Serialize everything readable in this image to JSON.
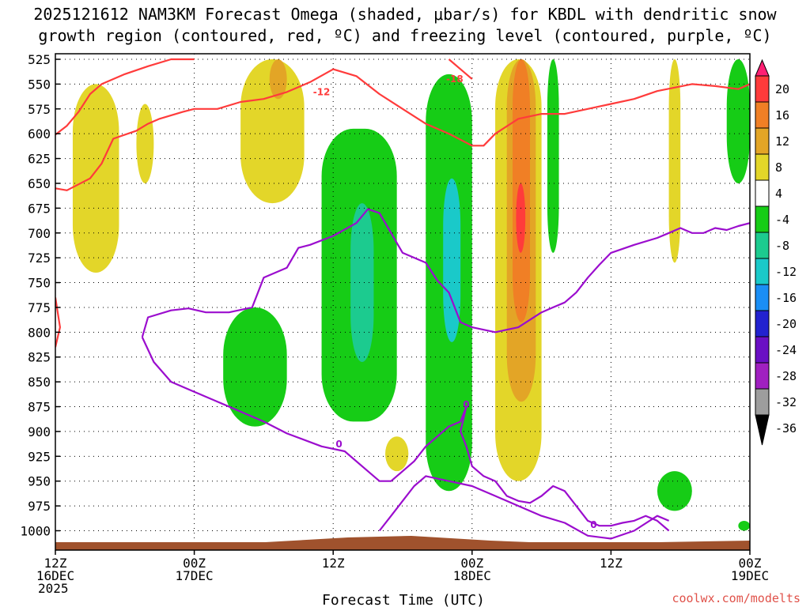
{
  "chart_data": {
    "type": "time-height contour",
    "title_line1": "2025121612 NAM3KM Forecast Omega (shaded, μbar/s) for KBDL with dendritic snow",
    "title_line2": "growth region (contoured, red, ºC) and freezing level (contoured, purple, ºC)",
    "xlabel": "Forecast Time (UTC)",
    "credit": "coolwx.com/modelts",
    "x_hours_range": [
      0,
      60
    ],
    "x_ticks": [
      {
        "hour": 0,
        "line1": "12Z",
        "line2": "16DEC",
        "line3": "2025"
      },
      {
        "hour": 12,
        "line1": "00Z",
        "line2": "17DEC",
        "line3": ""
      },
      {
        "hour": 24,
        "line1": "12Z",
        "line2": "",
        "line3": ""
      },
      {
        "hour": 36,
        "line1": "00Z",
        "line2": "18DEC",
        "line3": ""
      },
      {
        "hour": 48,
        "line1": "12Z",
        "line2": "",
        "line3": ""
      },
      {
        "hour": 60,
        "line1": "00Z",
        "line2": "19DEC",
        "line3": ""
      }
    ],
    "y_pressure_levels_hpa": [
      525,
      550,
      575,
      600,
      625,
      650,
      675,
      700,
      725,
      750,
      775,
      800,
      825,
      850,
      875,
      900,
      925,
      950,
      975,
      1000
    ],
    "colorbar": {
      "labels": [
        "20",
        "16",
        "12",
        "8",
        "4",
        "-4",
        "-8",
        "-12",
        "-16",
        "-20",
        "-24",
        "-28",
        "-32",
        "-36"
      ],
      "colors": [
        "#ff1f73",
        "#ff3b3b",
        "#f07f25",
        "#e3a526",
        "#e3d629",
        "#ffffff",
        "#16cc16",
        "#1ccb8f",
        "#1ac9c9",
        "#1a8ef5",
        "#2222d0",
        "#6a0fc4",
        "#a020c0",
        "#9d9d9d",
        "#000000"
      ]
    },
    "omega_regions_ubar_s": [
      {
        "category": "4 to 8",
        "hours": [
          1.5,
          5.5
        ],
        "pressure_hpa": [
          550,
          740
        ]
      },
      {
        "category": "4 to 8",
        "hours": [
          7,
          8.5
        ],
        "pressure_hpa": [
          570,
          650
        ]
      },
      {
        "category": "4 to 8",
        "hours": [
          16,
          21.5
        ],
        "pressure_hpa": [
          525,
          670
        ]
      },
      {
        "category": "8 to 12",
        "hours": [
          18.5,
          20
        ],
        "pressure_hpa": [
          525,
          565
        ]
      },
      {
        "category": "-4 to -8",
        "hours": [
          14.5,
          20
        ],
        "pressure_hpa": [
          775,
          895
        ]
      },
      {
        "category": "-4 to -8",
        "hours": [
          23,
          29.5
        ],
        "pressure_hpa": [
          595,
          890
        ]
      },
      {
        "category": "-8 to -12",
        "hours": [
          25.5,
          27.5
        ],
        "pressure_hpa": [
          670,
          830
        ]
      },
      {
        "category": "-4 to -8",
        "hours": [
          32,
          36
        ],
        "pressure_hpa": [
          540,
          960
        ]
      },
      {
        "category": "-12 to -16",
        "hours": [
          33.5,
          35
        ],
        "pressure_hpa": [
          645,
          810
        ]
      },
      {
        "category": "4 to 8",
        "hours": [
          38,
          42
        ],
        "pressure_hpa": [
          525,
          950
        ]
      },
      {
        "category": "8 to 12",
        "hours": [
          39,
          41.5
        ],
        "pressure_hpa": [
          525,
          870
        ]
      },
      {
        "category": "12 to 16",
        "hours": [
          39.5,
          41
        ],
        "pressure_hpa": [
          525,
          790
        ]
      },
      {
        "category": "16 to 20",
        "hours": [
          39.8,
          40.6
        ],
        "pressure_hpa": [
          650,
          720
        ]
      },
      {
        "category": "4 to 8",
        "hours": [
          28.5,
          30.5
        ],
        "pressure_hpa": [
          905,
          940
        ]
      },
      {
        "category": "-4 to -8",
        "hours": [
          42.5,
          43.5
        ],
        "pressure_hpa": [
          525,
          720
        ]
      },
      {
        "category": "4 to 8",
        "hours": [
          53,
          54
        ],
        "pressure_hpa": [
          525,
          730
        ]
      },
      {
        "category": "-4 to -8",
        "hours": [
          58,
          60
        ],
        "pressure_hpa": [
          525,
          650
        ]
      },
      {
        "category": "-4 to -8",
        "hours": [
          52,
          55
        ],
        "pressure_hpa": [
          940,
          980
        ]
      },
      {
        "category": "-4 to -8",
        "hours": [
          59,
          60
        ],
        "pressure_hpa": [
          990,
          1000
        ]
      }
    ],
    "contours": [
      {
        "name": "-12C isotherm (dendritic growth region)",
        "color": "#ff3b3b",
        "label": "-12",
        "points": [
          [
            0,
            601
          ],
          [
            1,
            592
          ],
          [
            2,
            578
          ],
          [
            3,
            560
          ],
          [
            4,
            550
          ],
          [
            6,
            540
          ],
          [
            8,
            532
          ],
          [
            10,
            525
          ],
          [
            12,
            525
          ]
        ]
      },
      {
        "name": "-12C isotherm lower branch",
        "color": "#ff3b3b",
        "label": "-12",
        "points": [
          [
            0,
            655
          ],
          [
            1,
            657
          ],
          [
            3,
            645
          ],
          [
            4,
            630
          ],
          [
            5,
            605
          ],
          [
            7,
            597
          ],
          [
            8,
            590
          ],
          [
            9,
            585
          ],
          [
            11,
            578
          ],
          [
            12,
            575
          ],
          [
            14,
            575
          ],
          [
            16,
            568
          ],
          [
            18,
            565
          ],
          [
            20,
            558
          ],
          [
            22,
            548
          ],
          [
            24,
            535
          ],
          [
            26,
            542
          ],
          [
            28,
            560
          ],
          [
            30,
            575
          ],
          [
            32,
            590
          ],
          [
            34,
            600
          ],
          [
            36,
            612
          ],
          [
            37,
            612
          ],
          [
            38,
            600
          ],
          [
            40,
            585
          ],
          [
            42,
            580
          ],
          [
            44,
            580
          ],
          [
            46,
            575
          ],
          [
            48,
            570
          ],
          [
            50,
            565
          ],
          [
            52,
            557
          ],
          [
            55,
            550
          ],
          [
            57,
            552
          ],
          [
            59,
            555
          ],
          [
            60,
            550
          ]
        ]
      },
      {
        "name": "-18C isotherm",
        "color": "#ff3b3b",
        "label": "-18",
        "points": [
          [
            34,
            525
          ],
          [
            35,
            535
          ],
          [
            36,
            545
          ]
        ]
      },
      {
        "name": "-12C edge",
        "color": "#ff3b3b",
        "label": "",
        "points": [
          [
            0,
            765
          ],
          [
            0.4,
            795
          ],
          [
            0,
            815
          ]
        ]
      },
      {
        "name": "0C freezing level",
        "color": "#9b0dce",
        "label": "0",
        "points": [
          [
            7.5,
            805
          ],
          [
            8,
            785
          ],
          [
            10,
            778
          ],
          [
            11.5,
            776
          ],
          [
            13,
            780
          ],
          [
            15,
            780
          ],
          [
            17,
            775
          ],
          [
            17.5,
            760
          ],
          [
            18,
            745
          ],
          [
            20,
            735
          ],
          [
            21,
            715
          ],
          [
            22,
            712
          ],
          [
            24,
            703
          ],
          [
            26,
            690
          ],
          [
            27,
            676
          ],
          [
            28,
            680
          ],
          [
            29,
            700
          ],
          [
            30,
            720
          ],
          [
            32,
            730
          ],
          [
            33,
            748
          ],
          [
            34,
            760
          ],
          [
            35,
            790
          ],
          [
            36,
            795
          ],
          [
            38,
            800
          ],
          [
            40,
            795
          ],
          [
            42,
            780
          ],
          [
            43,
            775
          ],
          [
            44,
            770
          ],
          [
            45,
            760
          ],
          [
            46,
            745
          ],
          [
            47,
            732
          ],
          [
            48,
            720
          ],
          [
            50,
            712
          ],
          [
            52,
            705
          ],
          [
            53,
            700
          ],
          [
            54,
            695
          ],
          [
            55,
            700
          ],
          [
            56,
            700
          ],
          [
            57,
            695
          ],
          [
            58,
            697
          ],
          [
            59,
            693
          ],
          [
            60,
            690
          ]
        ]
      },
      {
        "name": "0C freezing level lower branch",
        "color": "#9b0dce",
        "label": "0",
        "points": [
          [
            7.5,
            805
          ],
          [
            8.5,
            830
          ],
          [
            10,
            850
          ],
          [
            12,
            860
          ],
          [
            14,
            870
          ],
          [
            16,
            880
          ],
          [
            18,
            890
          ],
          [
            20,
            902
          ],
          [
            23,
            915
          ],
          [
            25,
            920
          ],
          [
            27,
            940
          ],
          [
            28,
            950
          ],
          [
            29,
            950
          ],
          [
            30,
            940
          ],
          [
            31,
            930
          ],
          [
            32,
            915
          ],
          [
            33,
            905
          ],
          [
            34,
            895
          ],
          [
            35,
            890
          ],
          [
            35.5,
            875
          ],
          [
            35,
            900
          ],
          [
            35.5,
            915
          ],
          [
            36,
            935
          ],
          [
            37,
            945
          ],
          [
            38,
            950
          ],
          [
            39,
            965
          ],
          [
            40,
            970
          ],
          [
            41,
            972
          ],
          [
            42,
            965
          ],
          [
            43,
            955
          ],
          [
            44,
            960
          ],
          [
            45,
            975
          ],
          [
            46,
            990
          ],
          [
            47,
            995
          ],
          [
            48,
            995
          ],
          [
            49,
            992
          ],
          [
            50,
            990
          ],
          [
            51,
            985
          ],
          [
            52,
            990
          ],
          [
            53,
            1000
          ]
        ]
      },
      {
        "name": "0C surface branch",
        "color": "#9b0dce",
        "label": "",
        "points": [
          [
            28,
            1000
          ],
          [
            29,
            985
          ],
          [
            30,
            970
          ],
          [
            31,
            955
          ],
          [
            32,
            945
          ],
          [
            34,
            950
          ],
          [
            36,
            955
          ],
          [
            38,
            965
          ],
          [
            40,
            975
          ],
          [
            42,
            985
          ],
          [
            44,
            992
          ],
          [
            46,
            1005
          ],
          [
            48,
            1008
          ],
          [
            50,
            1000
          ],
          [
            52,
            985
          ],
          [
            53,
            990
          ]
        ]
      }
    ],
    "terrain_color": "#a0522d"
  }
}
